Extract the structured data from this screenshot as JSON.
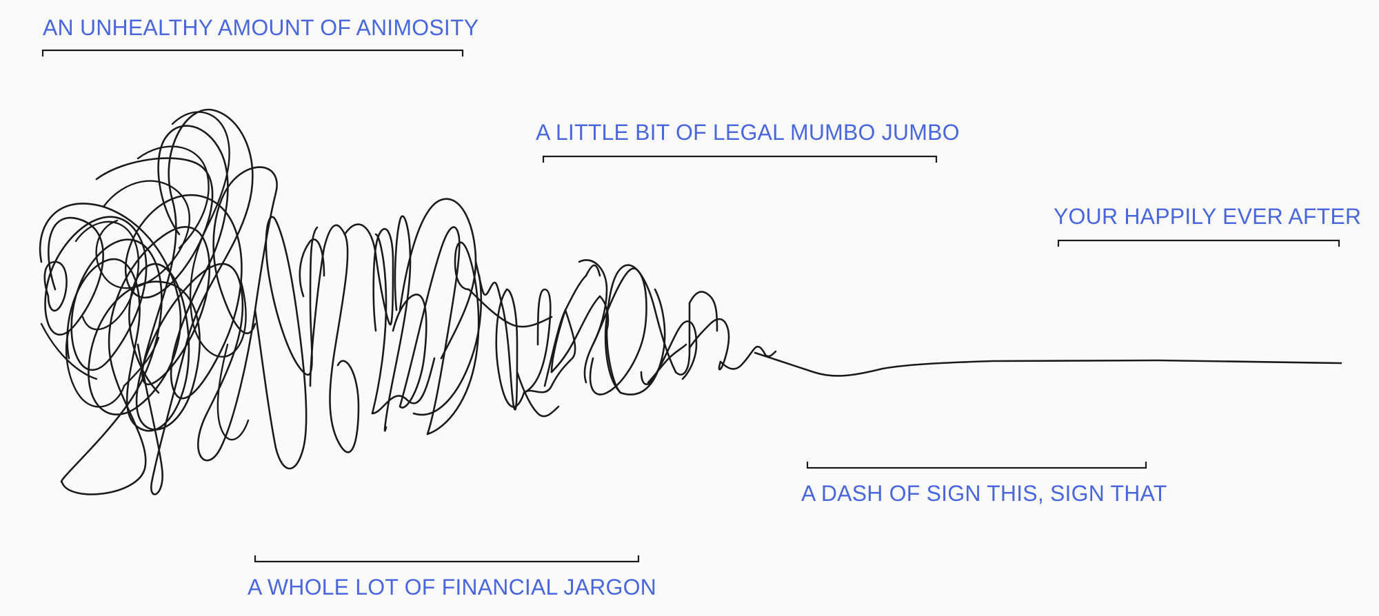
{
  "labels": {
    "animosity": "AN UNHEALTHY AMOUNT OF ANIMOSITY",
    "legal": "A LITTLE BIT OF LEGAL MUMBO JUMBO",
    "happily": "YOUR HAPPILY EVER AFTER",
    "sign": "A DASH OF SIGN THIS, SIGN THAT",
    "financial": "A WHOLE LOT OF FINANCIAL JARGON"
  },
  "colors": {
    "background": "#fafafa",
    "label": "#4a66dc",
    "stroke": "#1a1a1a"
  }
}
